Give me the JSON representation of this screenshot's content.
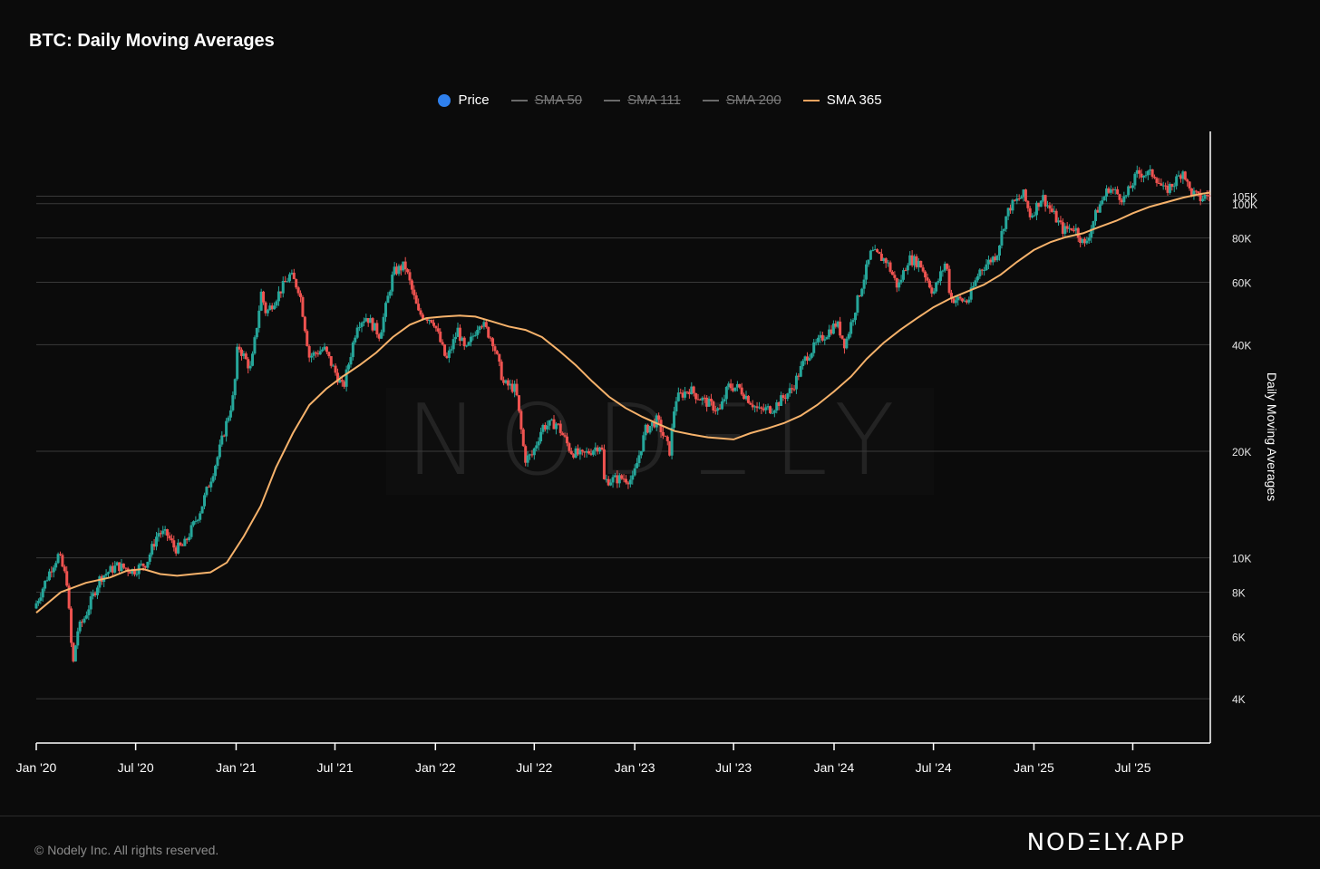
{
  "header": {
    "title": "BTC: Daily Moving Averages"
  },
  "legend": [
    {
      "label": "Price",
      "marker": "dot",
      "color": "#2f80ed",
      "enabled": true
    },
    {
      "label": "SMA 50",
      "marker": "line",
      "color": "#6a6a6a",
      "enabled": false
    },
    {
      "label": "SMA 111",
      "marker": "line",
      "color": "#6a6a6a",
      "enabled": false
    },
    {
      "label": "SMA 200",
      "marker": "line",
      "color": "#6a6a6a",
      "enabled": false
    },
    {
      "label": "SMA 365",
      "marker": "line",
      "color": "#f4a460",
      "enabled": true
    }
  ],
  "watermark": "NODΞLY",
  "footer": {
    "copyright": "© Nodely Inc. All rights reserved.",
    "brand": "NODΞLY.APP"
  },
  "colors": {
    "up": "#26a69a",
    "down": "#ef5350",
    "sma": "#f6b26b",
    "grid": "#3a3a3a",
    "axis": "#ffffff"
  },
  "chart_data": {
    "type": "candlestick",
    "title": "BTC: Daily Moving Averages",
    "ylabel": "Daily Moving Averages",
    "xlabel": "",
    "y_scale": "log",
    "grid": true,
    "legend_position": "top-center",
    "x_range": [
      "2020-01-01",
      "2025-11-20"
    ],
    "ylim": [
      3000,
      160000
    ],
    "x_ticks": [
      {
        "date": "2020-01-01",
        "label": "Jan '20"
      },
      {
        "date": "2020-07-01",
        "label": "Jul '20"
      },
      {
        "date": "2021-01-01",
        "label": "Jan '21"
      },
      {
        "date": "2021-07-01",
        "label": "Jul '21"
      },
      {
        "date": "2022-01-01",
        "label": "Jan '22"
      },
      {
        "date": "2022-07-01",
        "label": "Jul '22"
      },
      {
        "date": "2023-01-01",
        "label": "Jan '23"
      },
      {
        "date": "2023-07-01",
        "label": "Jul '23"
      },
      {
        "date": "2024-01-01",
        "label": "Jan '24"
      },
      {
        "date": "2024-07-01",
        "label": "Jul '24"
      },
      {
        "date": "2025-01-01",
        "label": "Jan '25"
      },
      {
        "date": "2025-07-01",
        "label": "Jul '25"
      }
    ],
    "y_ticks": [
      {
        "value": 4000,
        "label": "4K"
      },
      {
        "value": 6000,
        "label": "6K"
      },
      {
        "value": 8000,
        "label": "8K"
      },
      {
        "value": 10000,
        "label": "10K"
      },
      {
        "value": 20000,
        "label": "20K"
      },
      {
        "value": 40000,
        "label": "40K"
      },
      {
        "value": 60000,
        "label": "60K"
      },
      {
        "value": 80000,
        "label": "80K"
      },
      {
        "value": 100000,
        "label": "100K"
      },
      {
        "value": 105000,
        "label": "105K"
      }
    ],
    "series": [
      {
        "name": "Price",
        "kind": "price",
        "points": [
          [
            "2020-01-01",
            7200
          ],
          [
            "2020-02-01",
            9350
          ],
          [
            "2020-02-15",
            10200
          ],
          [
            "2020-03-01",
            8600
          ],
          [
            "2020-03-12",
            4900
          ],
          [
            "2020-03-20",
            6200
          ],
          [
            "2020-04-01",
            6700
          ],
          [
            "2020-05-01",
            8800
          ],
          [
            "2020-06-01",
            9500
          ],
          [
            "2020-07-01",
            9200
          ],
          [
            "2020-07-25",
            9700
          ],
          [
            "2020-08-15",
            11800
          ],
          [
            "2020-09-01",
            11600
          ],
          [
            "2020-09-15",
            10600
          ],
          [
            "2020-10-01",
            10800
          ],
          [
            "2020-11-01",
            13700
          ],
          [
            "2020-12-01",
            19000
          ],
          [
            "2021-01-01",
            29000
          ],
          [
            "2021-01-08",
            40000
          ],
          [
            "2021-02-01",
            34000
          ],
          [
            "2021-02-20",
            56000
          ],
          [
            "2021-03-01",
            49000
          ],
          [
            "2021-04-14",
            63000
          ],
          [
            "2021-05-01",
            57000
          ],
          [
            "2021-05-19",
            37000
          ],
          [
            "2021-06-15",
            39000
          ],
          [
            "2021-07-20",
            30000
          ],
          [
            "2021-08-15",
            46000
          ],
          [
            "2021-09-01",
            48000
          ],
          [
            "2021-09-25",
            42500
          ],
          [
            "2021-10-20",
            64000
          ],
          [
            "2021-11-10",
            67000
          ],
          [
            "2021-12-05",
            49000
          ],
          [
            "2022-01-01",
            47000
          ],
          [
            "2022-01-25",
            36000
          ],
          [
            "2022-02-15",
            44000
          ],
          [
            "2022-03-01",
            38000
          ],
          [
            "2022-03-28",
            47000
          ],
          [
            "2022-04-20",
            41000
          ],
          [
            "2022-05-10",
            31000
          ],
          [
            "2022-06-01",
            30000
          ],
          [
            "2022-06-18",
            19000
          ],
          [
            "2022-07-01",
            19500
          ],
          [
            "2022-07-20",
            23500
          ],
          [
            "2022-08-15",
            24000
          ],
          [
            "2022-09-10",
            20000
          ],
          [
            "2022-10-01",
            19400
          ],
          [
            "2022-11-05",
            21000
          ],
          [
            "2022-11-10",
            16500
          ],
          [
            "2022-12-15",
            16800
          ],
          [
            "2023-01-01",
            16600
          ],
          [
            "2023-01-25",
            23000
          ],
          [
            "2023-02-15",
            24500
          ],
          [
            "2023-03-10",
            20000
          ],
          [
            "2023-03-20",
            28000
          ],
          [
            "2023-04-15",
            30000
          ],
          [
            "2023-05-01",
            28500
          ],
          [
            "2023-06-10",
            26000
          ],
          [
            "2023-06-25",
            30500
          ],
          [
            "2023-07-15",
            30200
          ],
          [
            "2023-08-20",
            26000
          ],
          [
            "2023-09-15",
            26500
          ],
          [
            "2023-10-20",
            30000
          ],
          [
            "2023-11-15",
            37000
          ],
          [
            "2023-12-15",
            42000
          ],
          [
            "2024-01-10",
            46000
          ],
          [
            "2024-01-25",
            40000
          ],
          [
            "2024-02-15",
            52000
          ],
          [
            "2024-03-13",
            73000
          ],
          [
            "2024-04-10",
            69000
          ],
          [
            "2024-05-01",
            58000
          ],
          [
            "2024-05-20",
            70000
          ],
          [
            "2024-06-10",
            68000
          ],
          [
            "2024-07-05",
            56000
          ],
          [
            "2024-07-28",
            69000
          ],
          [
            "2024-08-05",
            54000
          ],
          [
            "2024-09-06",
            53000
          ],
          [
            "2024-09-28",
            65000
          ],
          [
            "2024-10-29",
            72000
          ],
          [
            "2024-11-12",
            89000
          ],
          [
            "2024-11-22",
            98000
          ],
          [
            "2024-12-17",
            106000
          ],
          [
            "2024-12-30",
            92000
          ],
          [
            "2025-01-20",
            105000
          ],
          [
            "2025-02-28",
            84000
          ],
          [
            "2025-03-20",
            86000
          ],
          [
            "2025-04-08",
            76000
          ],
          [
            "2025-05-01",
            96000
          ],
          [
            "2025-05-22",
            111000
          ],
          [
            "2025-06-20",
            103000
          ],
          [
            "2025-07-14",
            122000
          ],
          [
            "2025-08-14",
            121000
          ],
          [
            "2025-09-01",
            108000
          ],
          [
            "2025-09-20",
            115000
          ],
          [
            "2025-10-06",
            125000
          ],
          [
            "2025-10-15",
            110000
          ],
          [
            "2025-11-05",
            103000
          ],
          [
            "2025-11-20",
            106000
          ]
        ]
      },
      {
        "name": "SMA 365",
        "kind": "sma",
        "points": [
          [
            "2020-01-01",
            7000
          ],
          [
            "2020-02-15",
            8000
          ],
          [
            "2020-04-01",
            8500
          ],
          [
            "2020-05-15",
            8800
          ],
          [
            "2020-06-15",
            9200
          ],
          [
            "2020-07-15",
            9300
          ],
          [
            "2020-08-15",
            9000
          ],
          [
            "2020-09-15",
            8900
          ],
          [
            "2020-10-15",
            9000
          ],
          [
            "2020-11-15",
            9100
          ],
          [
            "2020-12-15",
            9700
          ],
          [
            "2021-01-15",
            11500
          ],
          [
            "2021-02-15",
            14000
          ],
          [
            "2021-03-15",
            18000
          ],
          [
            "2021-04-15",
            22500
          ],
          [
            "2021-05-15",
            27000
          ],
          [
            "2021-06-15",
            30000
          ],
          [
            "2021-07-15",
            32500
          ],
          [
            "2021-08-15",
            35000
          ],
          [
            "2021-09-15",
            38000
          ],
          [
            "2021-10-15",
            42000
          ],
          [
            "2021-11-15",
            45500
          ],
          [
            "2021-12-15",
            47500
          ],
          [
            "2022-01-15",
            48000
          ],
          [
            "2022-02-15",
            48300
          ],
          [
            "2022-03-15",
            48000
          ],
          [
            "2022-04-15",
            46500
          ],
          [
            "2022-05-15",
            45000
          ],
          [
            "2022-06-15",
            44000
          ],
          [
            "2022-07-15",
            42000
          ],
          [
            "2022-08-15",
            38500
          ],
          [
            "2022-09-15",
            35000
          ],
          [
            "2022-10-15",
            31500
          ],
          [
            "2022-11-15",
            28500
          ],
          [
            "2022-12-15",
            26500
          ],
          [
            "2023-01-15",
            25000
          ],
          [
            "2023-02-15",
            23800
          ],
          [
            "2023-03-15",
            22800
          ],
          [
            "2023-04-15",
            22300
          ],
          [
            "2023-05-15",
            21900
          ],
          [
            "2023-06-15",
            21700
          ],
          [
            "2023-07-01",
            21600
          ],
          [
            "2023-08-01",
            22500
          ],
          [
            "2023-09-01",
            23200
          ],
          [
            "2023-10-01",
            24000
          ],
          [
            "2023-11-01",
            25200
          ],
          [
            "2023-12-01",
            27000
          ],
          [
            "2024-01-01",
            29500
          ],
          [
            "2024-02-01",
            32500
          ],
          [
            "2024-03-01",
            36500
          ],
          [
            "2024-04-01",
            40500
          ],
          [
            "2024-05-01",
            44000
          ],
          [
            "2024-06-01",
            47500
          ],
          [
            "2024-07-01",
            51000
          ],
          [
            "2024-08-01",
            54000
          ],
          [
            "2024-09-01",
            56500
          ],
          [
            "2024-10-01",
            59000
          ],
          [
            "2024-11-01",
            63000
          ],
          [
            "2024-12-01",
            68500
          ],
          [
            "2025-01-01",
            74000
          ],
          [
            "2025-02-01",
            78000
          ],
          [
            "2025-03-01",
            80500
          ],
          [
            "2025-04-01",
            82500
          ],
          [
            "2025-05-01",
            86000
          ],
          [
            "2025-06-01",
            89500
          ],
          [
            "2025-07-01",
            94000
          ],
          [
            "2025-08-01",
            98000
          ],
          [
            "2025-09-01",
            101000
          ],
          [
            "2025-10-01",
            104000
          ],
          [
            "2025-11-01",
            106500
          ],
          [
            "2025-11-20",
            107500
          ]
        ]
      }
    ]
  }
}
